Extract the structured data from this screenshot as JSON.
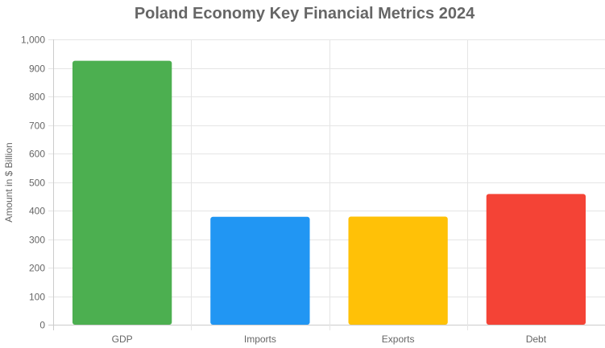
{
  "chart_data": {
    "type": "bar",
    "title": "Poland Economy Key Financial Metrics 2024",
    "xlabel": "",
    "ylabel": "Amount in $ Billion",
    "categories": [
      "GDP",
      "Imports",
      "Exports",
      "Debt"
    ],
    "values": [
      925,
      378,
      379,
      458
    ],
    "colors": [
      "#4caf50",
      "#2196f3",
      "#ffc107",
      "#f44336"
    ],
    "ylim": [
      0,
      1000
    ],
    "yticks": [
      0,
      100,
      200,
      300,
      400,
      500,
      600,
      700,
      800,
      900,
      1000
    ],
    "ytick_labels": [
      "0",
      "100",
      "200",
      "300",
      "400",
      "500",
      "600",
      "700",
      "800",
      "900",
      "1,000"
    ],
    "grid": true,
    "legend": "none"
  }
}
